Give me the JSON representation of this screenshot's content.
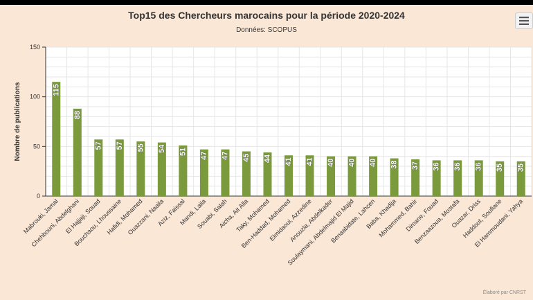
{
  "header": {
    "title": "Top15 des Chercheurs marocains pour la période 2020-2024",
    "subtitle": "Données: SCOPUS"
  },
  "menu": {
    "icon": "hamburger-menu-icon"
  },
  "credits": "Élaboré par CNRST",
  "colors": {
    "bar": "#7a9a3c",
    "background": "#fbe7d6",
    "plot": "#ffffff",
    "grid": "#e6e6e6"
  },
  "chart_data": {
    "type": "bar",
    "title": "Top15 des Chercheurs marocains pour la période 2020-2024",
    "subtitle": "Données: SCOPUS",
    "xlabel": "",
    "ylabel": "Nombre de publications",
    "ylim": [
      0,
      150
    ],
    "yticks": [
      0,
      50,
      100,
      150
    ],
    "grid": true,
    "categories": [
      "Mabrouki, Jamal",
      "Chehbouni, Abdelghani",
      "El Hajjaji, Souad",
      "Bouchaou, Lhoussaine",
      "Hafidi, Mohamed",
      "Ouazzani, Naaila",
      "Aziz, Faissal",
      "Mandi, Laila",
      "Souabi, Salah",
      "Aicha, Ait Alla",
      "Taky, Mohamed",
      "Ben-Haddad, Mohamed",
      "Elmidaoui, Azzedine",
      "Anouzla, Abdelkader",
      "Soulaymani, Abdelmajid El Majid",
      "Benaabidate, Lahcen",
      "Baba, Khadija",
      "Mohammed, Bahir",
      "Dimane, Fouad",
      "Benzaazoua, Mostafa",
      "Ouazar, Driss",
      "Haddout, Soufiane",
      "El Hammoudani, Yahya"
    ],
    "values": [
      115,
      88,
      57,
      57,
      55,
      54,
      51,
      47,
      47,
      45,
      44,
      41,
      41,
      40,
      40,
      40,
      38,
      37,
      36,
      36,
      36,
      35,
      35
    ],
    "data_labels": true
  }
}
